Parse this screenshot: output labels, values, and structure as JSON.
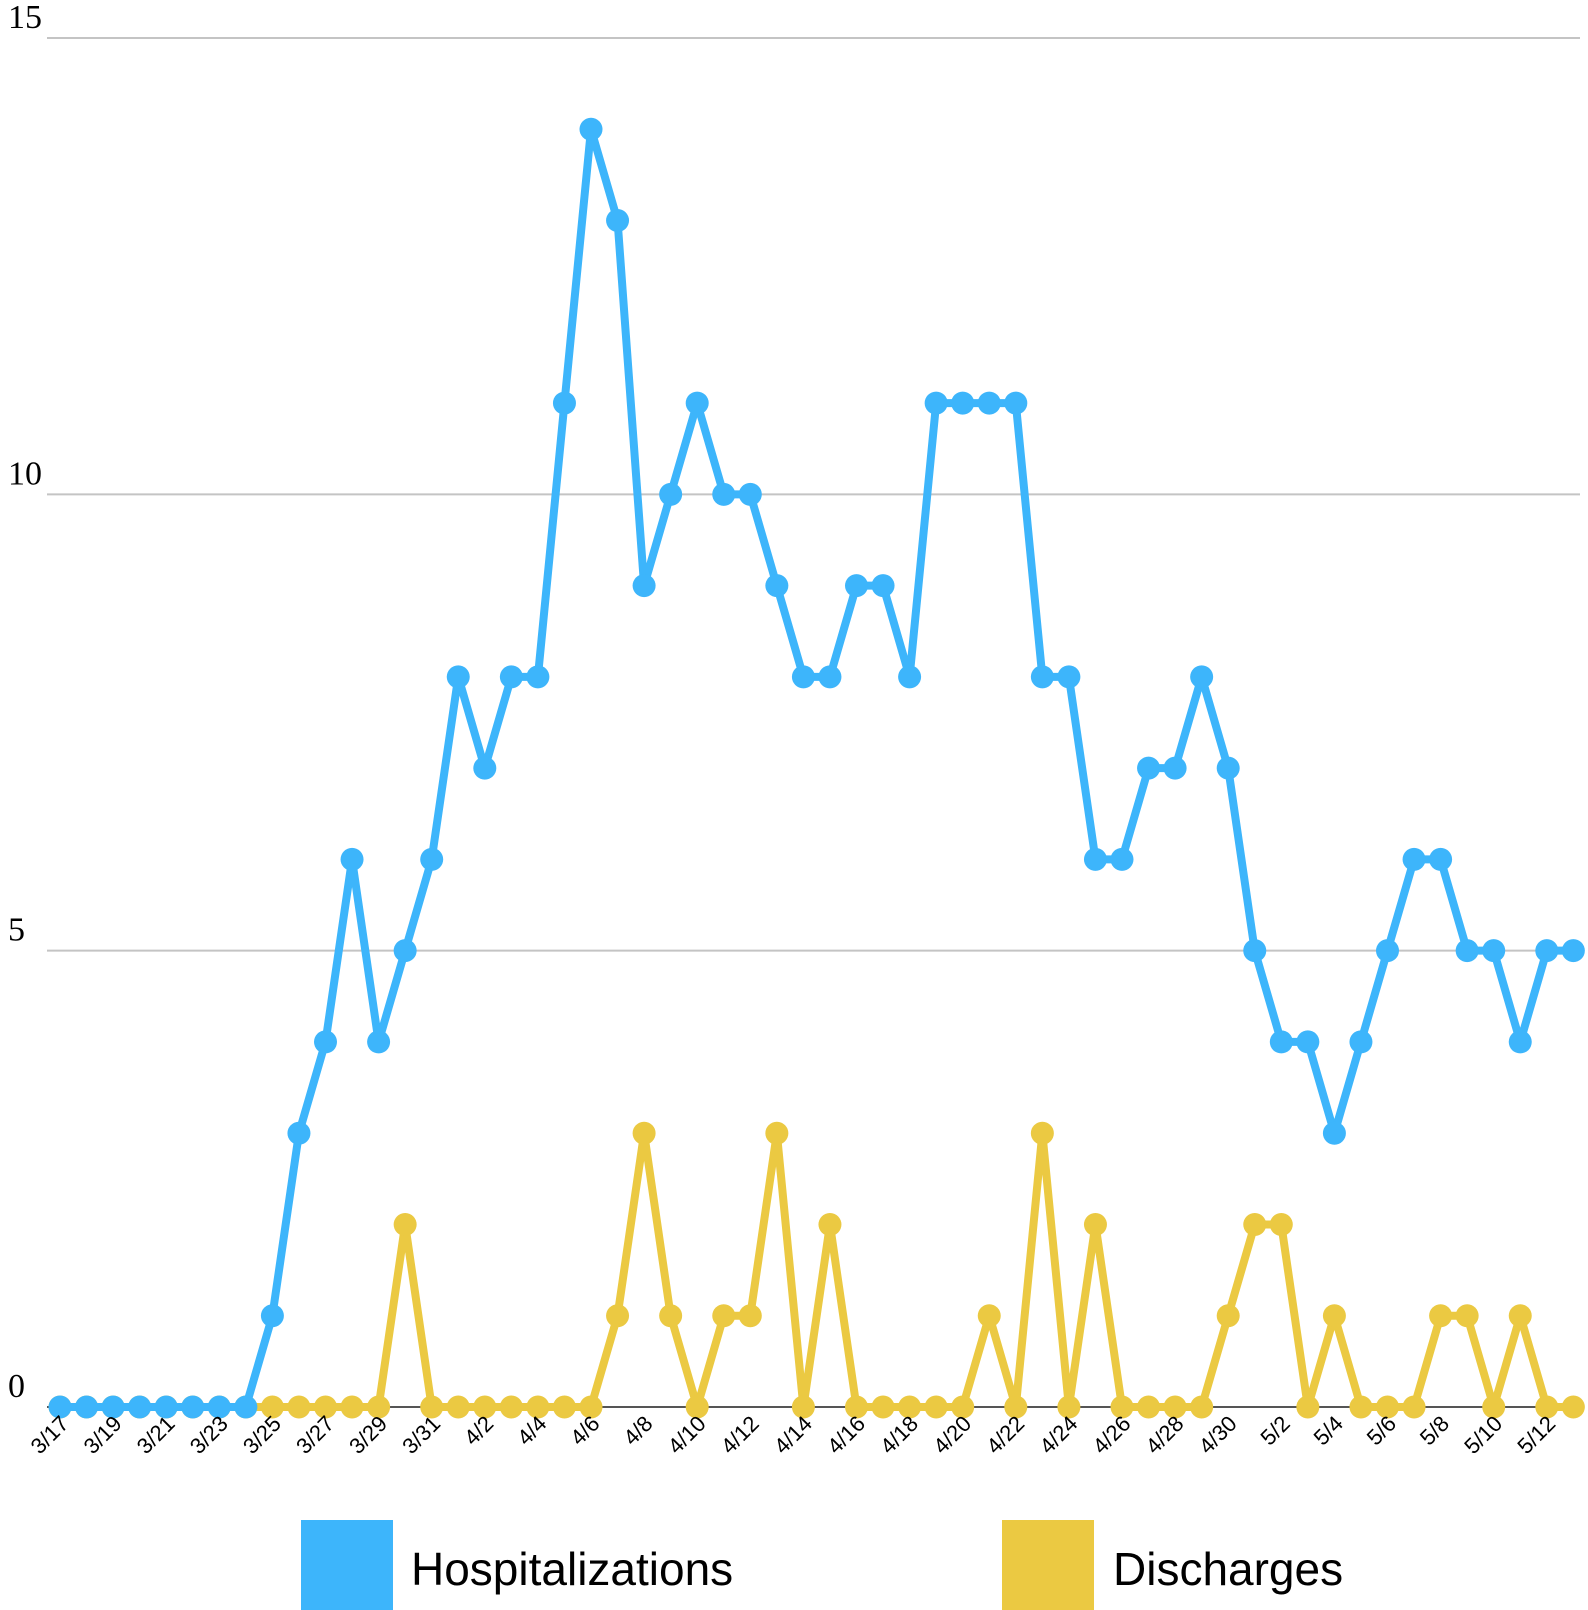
{
  "chart_data": {
    "type": "line",
    "ylim": [
      0,
      15
    ],
    "yticks": [
      "0",
      "5",
      "10",
      "15"
    ],
    "x": [
      "3/17",
      "3/18",
      "3/19",
      "3/20",
      "3/21",
      "3/22",
      "3/23",
      "3/24",
      "3/25",
      "3/26",
      "3/27",
      "3/28",
      "3/29",
      "3/30",
      "3/31",
      "4/1",
      "4/2",
      "4/3",
      "4/4",
      "4/5",
      "4/6",
      "4/7",
      "4/8",
      "4/9",
      "4/10",
      "4/11",
      "4/12",
      "4/13",
      "4/14",
      "4/15",
      "4/16",
      "4/17",
      "4/18",
      "4/19",
      "4/20",
      "4/21",
      "4/22",
      "4/23",
      "4/24",
      "4/25",
      "4/26",
      "4/27",
      "4/28",
      "4/29",
      "4/30",
      "5/1",
      "5/2",
      "5/3",
      "5/4",
      "5/5",
      "5/6",
      "5/7",
      "5/8",
      "5/9",
      "5/10",
      "5/11",
      "5/12",
      "5/13"
    ],
    "xticks_shown": [
      "3/17",
      "3/19",
      "3/21",
      "3/23",
      "3/25",
      "3/27",
      "3/29",
      "3/31",
      "4/2",
      "4/4",
      "4/6",
      "4/8",
      "4/10",
      "4/12",
      "4/14",
      "4/16",
      "4/18",
      "4/20",
      "4/22",
      "4/24",
      "4/26",
      "4/28",
      "4/30",
      "5/2",
      "5/4",
      "5/6",
      "5/8",
      "5/10",
      "5/12"
    ],
    "grid": true,
    "legend_position": "bottom",
    "series": [
      {
        "name": "Hospitalizations",
        "color": "#3db5fb",
        "values": [
          0,
          0,
          0,
          0,
          0,
          0,
          0,
          0,
          1,
          3,
          4,
          6,
          4,
          5,
          6,
          8,
          7,
          8,
          8,
          11,
          14,
          13,
          9,
          10,
          11,
          10,
          10,
          9,
          8,
          8,
          9,
          9,
          8,
          11,
          11,
          11,
          11,
          8,
          8,
          6,
          6,
          7,
          7,
          8,
          7,
          5,
          4,
          4,
          3,
          4,
          5,
          6,
          6,
          5,
          5,
          4,
          5,
          5
        ]
      },
      {
        "name": "Discharges",
        "color": "#ebc942",
        "values": [
          0,
          0,
          0,
          0,
          0,
          0,
          0,
          0,
          0,
          0,
          0,
          0,
          0,
          2,
          0,
          0,
          0,
          0,
          0,
          0,
          0,
          1,
          3,
          1,
          0,
          1,
          1,
          3,
          0,
          2,
          0,
          0,
          0,
          0,
          0,
          1,
          0,
          3,
          0,
          2,
          0,
          0,
          0,
          0,
          1,
          2,
          2,
          0,
          1,
          0,
          0,
          0,
          1,
          1,
          0,
          1,
          0,
          0
        ]
      }
    ]
  }
}
